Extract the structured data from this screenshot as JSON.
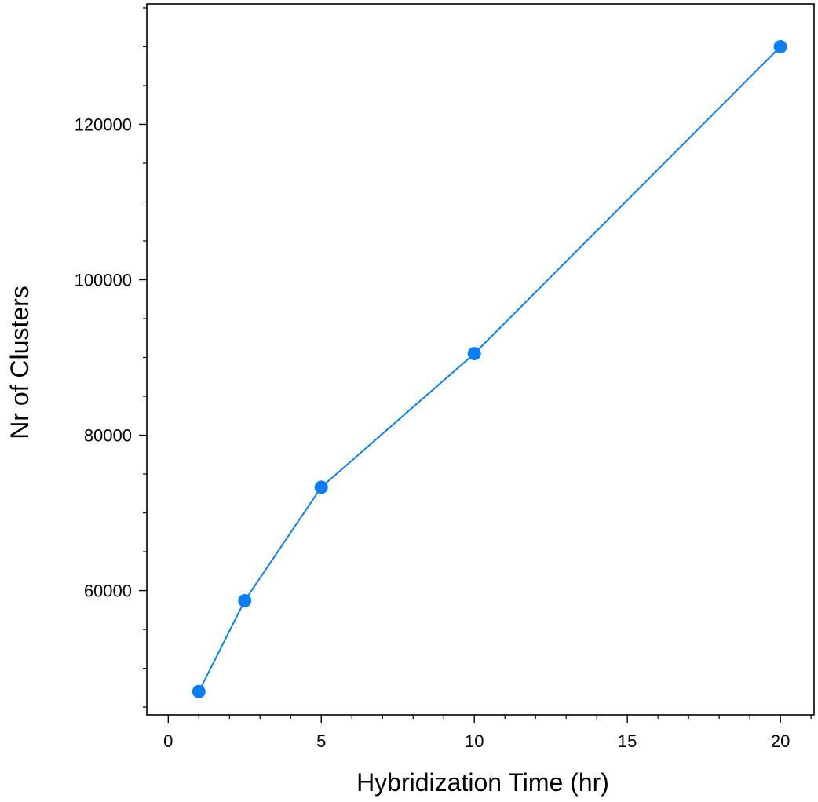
{
  "chart_data": {
    "type": "line",
    "title": "",
    "xlabel": "Hybridization Time (hr)",
    "ylabel": "Nr of Clusters",
    "xlim": [
      -0.7,
      21.1
    ],
    "ylim": [
      44000,
      135500
    ],
    "x_major_ticks": [
      0,
      5,
      10,
      15,
      20
    ],
    "x_minor_step": 1,
    "y_major_ticks": [
      60000,
      80000,
      100000,
      120000
    ],
    "y_minor_step": 5000,
    "grid": false,
    "legend": "none",
    "series": [
      {
        "color": "#0a7ff5",
        "x": [
          1,
          2.5,
          5,
          10,
          20
        ],
        "y": [
          47000,
          58700,
          73300,
          90500,
          130000
        ]
      }
    ]
  }
}
